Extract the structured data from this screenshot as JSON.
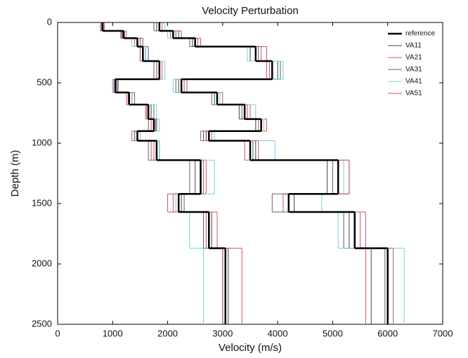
{
  "chart_data": {
    "type": "step-profile",
    "title": "Velocity Perturbation",
    "x_label": "Velocity (m/s)",
    "y_label": "Depth (m)",
    "xlim": [
      0,
      7000
    ],
    "xticks": [
      0,
      1000,
      2000,
      3000,
      4000,
      5000,
      6000,
      7000
    ],
    "ylim": [
      0,
      2500
    ],
    "yticks": [
      0,
      500,
      1000,
      1500,
      2000,
      2500
    ],
    "y_reversed": true,
    "legend": "upper right",
    "depths": [
      0,
      70,
      130,
      200,
      320,
      470,
      580,
      680,
      800,
      900,
      980,
      1140,
      1420,
      1570,
      1870,
      2500
    ],
    "series": [
      {
        "name": "VA11",
        "color": "#444444",
        "profiles": [
          [
            800,
            1150,
            1500,
            1600,
            1800,
            1100,
            1350,
            1700,
            1800,
            1400,
            1850,
            2500,
            2250,
            2800,
            3100
          ],
          [
            1800,
            2200,
            2450,
            3500,
            4000,
            2200,
            2850,
            3300,
            3600,
            2700,
            3600,
            4900,
            4300,
            5300,
            5700
          ]
        ]
      },
      {
        "name": "VA21",
        "color": "#e05050",
        "profiles": [
          [
            850,
            1250,
            1400,
            1500,
            1900,
            1000,
            1250,
            1600,
            1700,
            1500,
            1750,
            2700,
            2100,
            2900,
            3350
          ],
          [
            1900,
            2050,
            2600,
            3700,
            3800,
            2300,
            3000,
            3500,
            3800,
            2800,
            3400,
            5300,
            4100,
            5500,
            5600
          ]
        ]
      },
      {
        "name": "VA31",
        "color": "#606070",
        "profiles": [
          [
            780,
            1180,
            1550,
            1650,
            1750,
            1080,
            1400,
            1750,
            1650,
            1400,
            1650,
            2400,
            2300,
            2650,
            3000
          ],
          [
            1750,
            2150,
            2400,
            3650,
            4050,
            2150,
            2800,
            3350,
            3600,
            2650,
            3550,
            5000,
            3900,
            5200,
            5950
          ]
        ]
      },
      {
        "name": "VA41",
        "color": "#70d0e0",
        "profiles": [
          [
            830,
            1220,
            1350,
            1600,
            1950,
            1000,
            1350,
            1800,
            1850,
            1500,
            1850,
            2850,
            2150,
            2400,
            2650
          ],
          [
            1950,
            2000,
            2550,
            3450,
            4100,
            2100,
            2950,
            3600,
            3750,
            2850,
            3950,
            5200,
            4800,
            5100,
            6300
          ]
        ]
      },
      {
        "name": "VA51",
        "color": "#c05080",
        "profiles": [
          [
            810,
            1170,
            1500,
            1500,
            1800,
            1020,
            1280,
            1620,
            1780,
            1350,
            1700,
            2650,
            2000,
            2700,
            3000
          ],
          [
            1850,
            2250,
            2550,
            3800,
            3850,
            2350,
            2900,
            3450,
            3650,
            2600,
            3650,
            5300,
            4200,
            5600,
            6100
          ]
        ]
      },
      {
        "name": "reference",
        "color": "#000000",
        "line_width": 2.5,
        "profiles": [
          [
            820,
            1200,
            1450,
            1550,
            1850,
            1050,
            1300,
            1650,
            1750,
            1450,
            1800,
            2600,
            2200,
            2750,
            3050
          ],
          [
            1850,
            2100,
            2500,
            3600,
            3900,
            2250,
            2900,
            3400,
            3700,
            2750,
            3500,
            5100,
            4200,
            5400,
            6000
          ]
        ]
      }
    ]
  }
}
